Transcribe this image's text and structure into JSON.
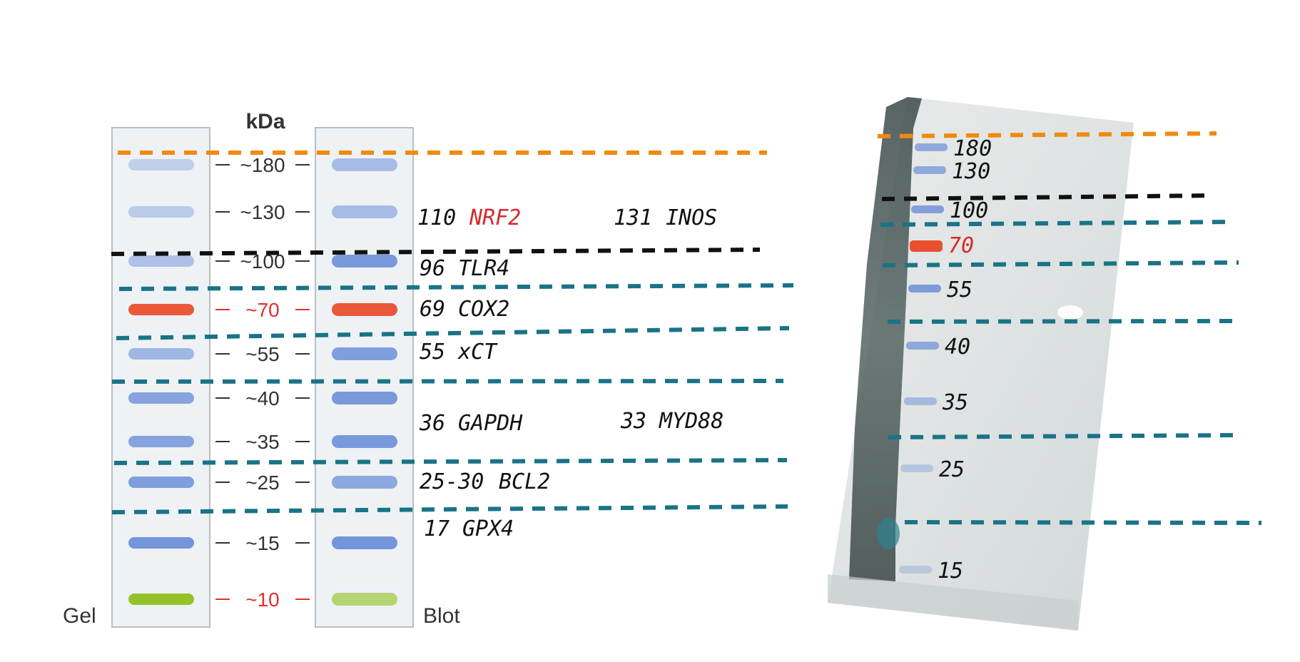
{
  "ladder": {
    "unit": "kDa",
    "gel_label": "Gel",
    "blot_label": "Blot",
    "markers": [
      {
        "label": "~180",
        "color": "#333333"
      },
      {
        "label": "~130",
        "color": "#333333"
      },
      {
        "label": "~100",
        "color": "#333333"
      },
      {
        "label": "~70",
        "color": "#e03030"
      },
      {
        "label": "~55",
        "color": "#333333"
      },
      {
        "label": "~40",
        "color": "#333333"
      },
      {
        "label": "~35",
        "color": "#333333"
      },
      {
        "label": "~25",
        "color": "#333333"
      },
      {
        "label": "~15",
        "color": "#333333"
      },
      {
        "label": "~10",
        "color": "#e03030"
      }
    ]
  },
  "annotations": [
    {
      "size": "110",
      "name": "NRF2",
      "name_color": "#d42a2a"
    },
    {
      "size": "131",
      "name": "INOS",
      "name_color": "#111111"
    },
    {
      "size": "96",
      "name": "TLR4",
      "name_color": "#111111"
    },
    {
      "size": "69",
      "name": "COX2",
      "name_color": "#111111"
    },
    {
      "size": "55",
      "name": "xCT",
      "name_color": "#111111"
    },
    {
      "size": "36",
      "name": "GAPDH",
      "name_color": "#111111"
    },
    {
      "size": "33",
      "name": "MYD88",
      "name_color": "#111111"
    },
    {
      "size": "25-30",
      "name": "BCL2",
      "name_color": "#111111"
    },
    {
      "size": "17",
      "name": "GPX4",
      "name_color": "#111111"
    }
  ],
  "photo_markers": [
    {
      "label": "180",
      "color": "#111111"
    },
    {
      "label": "130",
      "color": "#111111"
    },
    {
      "label": "100",
      "color": "#111111"
    },
    {
      "label": "70",
      "color": "#d42a2a"
    },
    {
      "label": "55",
      "color": "#111111"
    },
    {
      "label": "40",
      "color": "#111111"
    },
    {
      "label": "35",
      "color": "#111111"
    },
    {
      "label": "25",
      "color": "#111111"
    },
    {
      "label": "15",
      "color": "#111111"
    }
  ],
  "colors": {
    "orange_line": "#f08a10",
    "black_line": "#111111",
    "teal_line": "#1a7386",
    "band_blue": "#6b8fd8",
    "band_red": "#e8502e",
    "band_green": "#8fbf1e"
  }
}
